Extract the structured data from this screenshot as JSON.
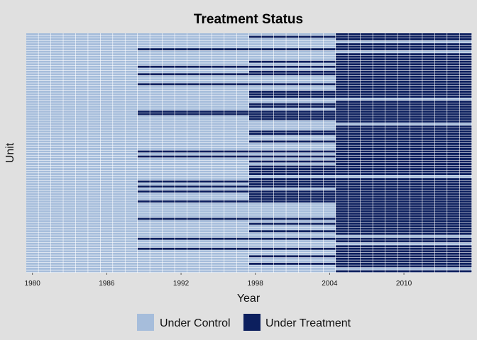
{
  "chart_data": {
    "type": "heatmap",
    "title": "Treatment Status",
    "xlabel": "Year",
    "ylabel": "Unit",
    "x_range": [
      1980,
      2015
    ],
    "x_ticks": [
      "1980",
      "1986",
      "1992",
      "1998",
      "2004",
      "2010"
    ],
    "n_units": 96,
    "treatment_start_years": [
      1989,
      1998,
      2005
    ],
    "legend": {
      "position": "bottom",
      "entries": [
        {
          "label": "Under Control",
          "color": "#a6bddb"
        },
        {
          "label": "Under Treatment",
          "color": "#0c1f5e"
        }
      ]
    },
    "pattern_description": "All units under control 1980-1988; from 1989 a subset of units is treated, more units become treated from 1998, and most units are treated from 2005 through 2015."
  }
}
